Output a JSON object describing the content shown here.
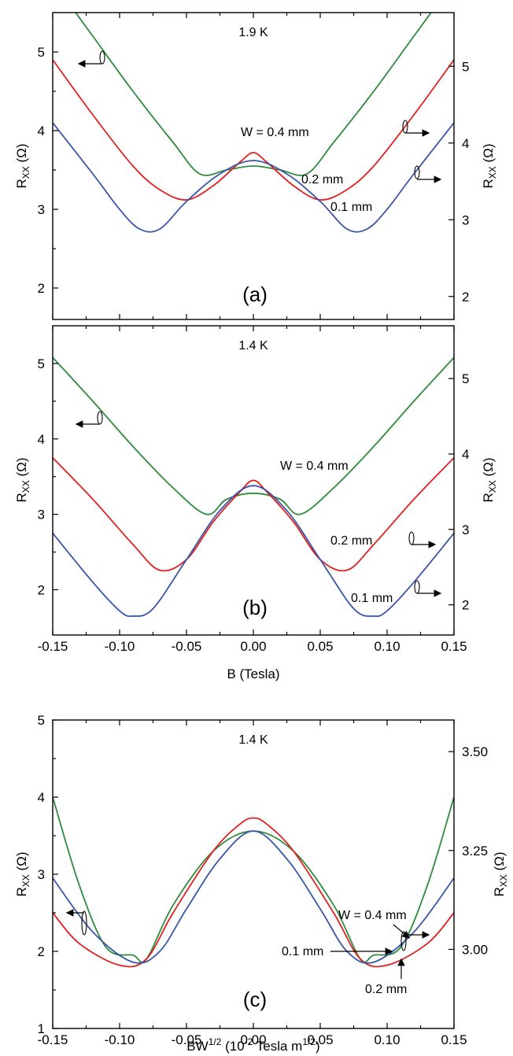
{
  "colors": {
    "w04": "#2e8b3c",
    "w02": "#e02020",
    "w01": "#3a55a8"
  },
  "chart_data": [
    {
      "type": "line",
      "panel_label": "(a)",
      "temperature": "1.9 K",
      "xlim": [
        -0.15,
        0.15
      ],
      "xticks": [
        -0.15,
        -0.1,
        -0.05,
        0.0,
        0.05,
        0.1,
        0.15
      ],
      "x_tick_labels": [
        "-0.15",
        "-0.10",
        "-0.05",
        "0.00",
        "0.05",
        "0.10",
        "0.15"
      ],
      "ylim_left": [
        1.6,
        5.5
      ],
      "yticks_left": [
        2,
        3,
        4,
        5
      ],
      "y_tick_labels_left": [
        "2",
        "3",
        "4",
        "5"
      ],
      "ylim_right": [
        1.7,
        5.7
      ],
      "yticks_right": [
        2,
        3,
        4,
        5
      ],
      "y_tick_labels_right": [
        "2",
        "3",
        "4",
        "5"
      ],
      "ylabel_left": "R",
      "ylabel_left_sub": "XX",
      "ylabel_left_unit": " (Ω)",
      "ylabel_right": "R",
      "ylabel_right_sub": "XX",
      "ylabel_right_unit": " (Ω)",
      "series": [
        {
          "name": "W = 0.4 mm",
          "axis": "left",
          "color_key": "w04",
          "x": [
            -0.15,
            -0.12,
            -0.09,
            -0.06,
            -0.04,
            -0.02,
            0,
            0.02,
            0.04,
            0.06,
            0.09,
            0.12,
            0.15
          ],
          "y": [
            5.9,
            5.2,
            4.5,
            3.85,
            3.45,
            3.5,
            3.55,
            3.5,
            3.45,
            3.85,
            4.5,
            5.2,
            5.9
          ]
        },
        {
          "name": "0.2 mm",
          "axis": "left",
          "color_key": "w02",
          "x": [
            -0.15,
            -0.12,
            -0.09,
            -0.07,
            -0.05,
            -0.03,
            -0.01,
            0,
            0.01,
            0.03,
            0.05,
            0.07,
            0.09,
            0.12,
            0.15
          ],
          "y": [
            4.9,
            4.2,
            3.55,
            3.25,
            3.12,
            3.3,
            3.6,
            3.72,
            3.6,
            3.3,
            3.12,
            3.25,
            3.55,
            4.2,
            4.9
          ]
        },
        {
          "name": "0.1 mm",
          "axis": "left",
          "color_key": "w01",
          "x": [
            -0.15,
            -0.12,
            -0.1,
            -0.085,
            -0.07,
            -0.05,
            -0.025,
            0,
            0.025,
            0.05,
            0.07,
            0.085,
            0.1,
            0.12,
            0.15
          ],
          "y": [
            4.1,
            3.45,
            3.0,
            2.75,
            2.75,
            3.1,
            3.45,
            3.62,
            3.45,
            3.1,
            2.75,
            2.75,
            3.0,
            3.45,
            4.1
          ]
        }
      ],
      "labels": {
        "w04": "W = 0.4 mm",
        "w02": "0.2 mm",
        "w01": "0.1 mm"
      }
    },
    {
      "type": "line",
      "panel_label": "(b)",
      "temperature": "1.4 K",
      "xlabel": "B (Tesla)",
      "xlim": [
        -0.15,
        0.15
      ],
      "xticks": [
        -0.15,
        -0.1,
        -0.05,
        0.0,
        0.05,
        0.1,
        0.15
      ],
      "x_tick_labels": [
        "-0.15",
        "-0.10",
        "-0.05",
        "0.00",
        "0.05",
        "0.10",
        "0.15"
      ],
      "ylim_left": [
        1.4,
        5.5
      ],
      "yticks_left": [
        2,
        3,
        4,
        5
      ],
      "y_tick_labels_left": [
        "2",
        "3",
        "4",
        "5"
      ],
      "ylim_right": [
        1.6,
        5.7
      ],
      "yticks_right": [
        2,
        3,
        4,
        5
      ],
      "y_tick_labels_right": [
        "2",
        "3",
        "4",
        "5"
      ],
      "ylabel_left": "R",
      "ylabel_left_sub": "XX",
      "ylabel_left_unit": " (Ω)",
      "ylabel_right": "R",
      "ylabel_right_sub": "XX",
      "ylabel_right_unit": " (Ω)",
      "series": [
        {
          "name": "W = 0.4 mm",
          "axis": "left",
          "color_key": "w04",
          "x": [
            -0.15,
            -0.12,
            -0.09,
            -0.06,
            -0.035,
            -0.02,
            0,
            0.02,
            0.035,
            0.06,
            0.09,
            0.12,
            0.15
          ],
          "y": [
            5.08,
            4.5,
            3.9,
            3.35,
            3.0,
            3.2,
            3.28,
            3.2,
            3.0,
            3.35,
            3.9,
            4.5,
            5.08
          ]
        },
        {
          "name": "0.2 mm",
          "axis": "left",
          "color_key": "w02",
          "x": [
            -0.15,
            -0.12,
            -0.09,
            -0.07,
            -0.05,
            -0.03,
            -0.01,
            0,
            0.01,
            0.03,
            0.05,
            0.07,
            0.09,
            0.12,
            0.15
          ],
          "y": [
            3.75,
            3.2,
            2.6,
            2.26,
            2.4,
            2.9,
            3.3,
            3.45,
            3.3,
            2.9,
            2.4,
            2.26,
            2.6,
            3.2,
            3.75
          ]
        },
        {
          "name": "0.1 mm",
          "axis": "left",
          "color_key": "w01",
          "x": [
            -0.15,
            -0.12,
            -0.1,
            -0.09,
            -0.075,
            -0.05,
            -0.025,
            0,
            0.025,
            0.05,
            0.075,
            0.09,
            0.1,
            0.12,
            0.15
          ],
          "y": [
            2.75,
            2.1,
            1.72,
            1.65,
            1.75,
            2.4,
            3.05,
            3.38,
            3.05,
            2.4,
            1.75,
            1.65,
            1.72,
            2.1,
            2.75
          ]
        }
      ],
      "labels": {
        "w04": "W = 0.4 mm",
        "w02": "0.2 mm",
        "w01": "0.1 mm"
      }
    },
    {
      "type": "line",
      "panel_label": "(c)",
      "temperature": "1.4 K",
      "xlabel": "BW",
      "xlabel_sup": "1/2",
      "xlabel_mid": " (10",
      "xlabel_sup2": "-2",
      "xlabel_end": " Tesla m",
      "xlabel_sup3": "1/2",
      "xlabel_close": ")",
      "xlim": [
        -0.15,
        0.15
      ],
      "xticks": [
        -0.15,
        -0.1,
        -0.05,
        0.0,
        0.05,
        0.1,
        0.15
      ],
      "x_tick_labels": [
        "-0.15",
        "-0.10",
        "-0.05",
        "0.00",
        "0.05",
        "0.10",
        "0.15"
      ],
      "ylim_left": [
        1,
        5
      ],
      "yticks_left": [
        1,
        2,
        3,
        4,
        5
      ],
      "y_tick_labels_left": [
        "1",
        "2",
        "3",
        "4",
        "5"
      ],
      "ylim_right": [
        2.8,
        3.58
      ],
      "yticks_right": [
        3.0,
        3.25,
        3.5
      ],
      "y_tick_labels_right": [
        "3.00",
        "3.25",
        "3.50"
      ],
      "ylabel_left": "R",
      "ylabel_left_sub": "XX",
      "ylabel_left_unit": "  (Ω)",
      "ylabel_right": "R",
      "ylabel_right_sub": "XX",
      "ylabel_right_unit": " (Ω)",
      "series": [
        {
          "name": "W = 0.4 mm",
          "axis": "left",
          "color_key": "w04",
          "x": [
            -0.15,
            -0.13,
            -0.11,
            -0.09,
            -0.08,
            -0.06,
            -0.03,
            0,
            0.03,
            0.06,
            0.08,
            0.09,
            0.11,
            0.13,
            0.15
          ],
          "y": [
            4.0,
            2.85,
            2.05,
            1.95,
            1.9,
            2.6,
            3.3,
            3.56,
            3.3,
            2.6,
            1.9,
            1.95,
            2.05,
            2.85,
            4.0
          ]
        },
        {
          "name": "0.2 mm",
          "axis": "left",
          "color_key": "w02",
          "x": [
            -0.15,
            -0.13,
            -0.1,
            -0.08,
            -0.06,
            -0.03,
            -0.01,
            0,
            0.01,
            0.03,
            0.06,
            0.08,
            0.1,
            0.13,
            0.15
          ],
          "y": [
            2.5,
            2.1,
            1.82,
            1.9,
            2.5,
            3.3,
            3.65,
            3.73,
            3.65,
            3.3,
            2.5,
            1.9,
            1.82,
            2.1,
            2.5
          ]
        },
        {
          "name": "0.1 mm",
          "axis": "left",
          "color_key": "w01",
          "x": [
            -0.15,
            -0.12,
            -0.09,
            -0.07,
            -0.05,
            -0.025,
            0,
            0.025,
            0.05,
            0.07,
            0.09,
            0.12,
            0.15
          ],
          "y": [
            2.95,
            2.25,
            1.86,
            2.0,
            2.55,
            3.2,
            3.56,
            3.2,
            2.55,
            2.0,
            1.86,
            2.25,
            2.95
          ]
        }
      ],
      "labels": {
        "w04": "W = 0.4 mm",
        "w02": "0.2 mm",
        "w01": "0.1 mm"
      }
    }
  ]
}
